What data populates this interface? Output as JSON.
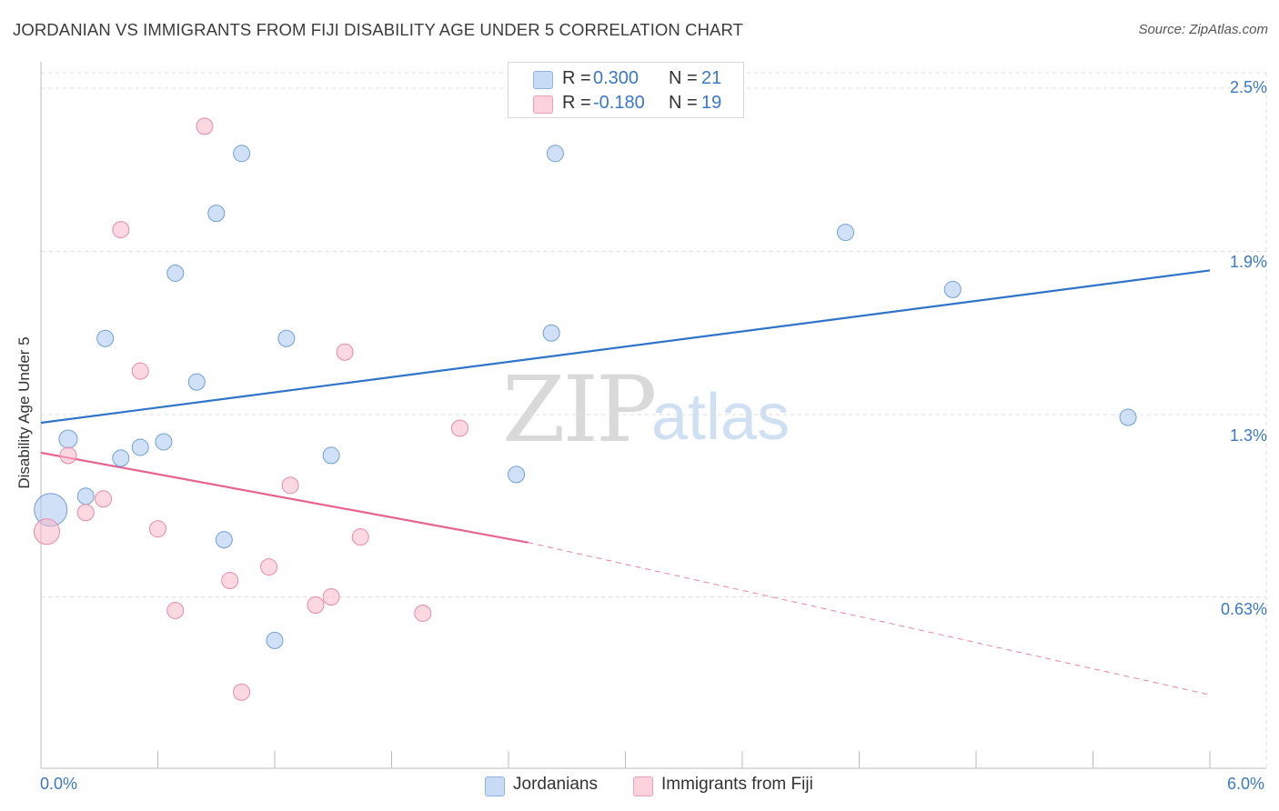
{
  "title": "JORDANIAN VS IMMIGRANTS FROM FIJI DISABILITY AGE UNDER 5 CORRELATION CHART",
  "source": "Source: ZipAtlas.com",
  "watermark": {
    "zip": "ZIP",
    "atlas": "atlas"
  },
  "legend": {
    "rows": [
      {
        "r_label": "R =",
        "r_value": "0.300",
        "n_label": "N =",
        "n_value": "21",
        "color": "#a9c8f0"
      },
      {
        "r_label": "R =",
        "r_value": "-0.180",
        "n_label": "N =",
        "n_value": "19",
        "color": "#f7b8ca"
      }
    ]
  },
  "bottom_legend": {
    "series1": "Jordanians",
    "series2": "Immigrants from Fiji"
  },
  "chart_data": {
    "type": "scatter",
    "title": "JORDANIAN VS IMMIGRANTS FROM FIJI DISABILITY AGE UNDER 5 CORRELATION CHART",
    "xlabel": "",
    "ylabel": "Disability Age Under 5",
    "xlim": [
      0.0,
      6.0
    ],
    "ylim": [
      0.0,
      2.5
    ],
    "x_tick_labels": [
      "0.0%",
      "6.0%"
    ],
    "y_ticks": [
      0.63,
      1.3,
      1.9,
      2.5
    ],
    "y_tick_labels": [
      "0.63%",
      "1.3%",
      "1.9%",
      "2.5%"
    ],
    "grid": true,
    "series": [
      {
        "name": "Jordanians",
        "color": "#a9c8f0",
        "stroke": "#6f9fd8",
        "line_color": "#2f74c8",
        "trend": {
          "x0": 0.0,
          "y0": 1.27,
          "x1": 6.0,
          "y1": 1.83
        },
        "points": [
          {
            "x": 0.05,
            "y": 0.95,
            "size": 18
          },
          {
            "x": 0.14,
            "y": 1.21,
            "size": 10
          },
          {
            "x": 0.23,
            "y": 1.0,
            "size": 9
          },
          {
            "x": 0.33,
            "y": 1.58,
            "size": 9
          },
          {
            "x": 0.41,
            "y": 1.14,
            "size": 9
          },
          {
            "x": 0.51,
            "y": 1.18,
            "size": 9
          },
          {
            "x": 0.63,
            "y": 1.2,
            "size": 9
          },
          {
            "x": 0.69,
            "y": 1.82,
            "size": 9
          },
          {
            "x": 0.8,
            "y": 1.42,
            "size": 9
          },
          {
            "x": 0.9,
            "y": 2.04,
            "size": 9
          },
          {
            "x": 0.94,
            "y": 0.84,
            "size": 9
          },
          {
            "x": 1.03,
            "y": 2.26,
            "size": 9
          },
          {
            "x": 1.2,
            "y": 0.47,
            "size": 9
          },
          {
            "x": 1.26,
            "y": 1.58,
            "size": 9
          },
          {
            "x": 1.49,
            "y": 1.15,
            "size": 9
          },
          {
            "x": 2.44,
            "y": 1.08,
            "size": 9
          },
          {
            "x": 2.62,
            "y": 1.6,
            "size": 9
          },
          {
            "x": 2.64,
            "y": 2.26,
            "size": 9
          },
          {
            "x": 4.13,
            "y": 1.97,
            "size": 9
          },
          {
            "x": 4.68,
            "y": 1.76,
            "size": 9
          },
          {
            "x": 5.58,
            "y": 1.29,
            "size": 9
          }
        ]
      },
      {
        "name": "Immigrants from Fiji",
        "color": "#f7b8ca",
        "stroke": "#e98aa7",
        "line_color": "#e8638f",
        "trend": {
          "x0": 0.0,
          "y0": 1.16,
          "x1": 2.5,
          "y1": 0.83
        },
        "trend_dashed": {
          "x0": 2.5,
          "y0": 0.83,
          "x1": 6.0,
          "y1": 0.27
        },
        "points": [
          {
            "x": 0.03,
            "y": 0.87,
            "size": 14
          },
          {
            "x": 0.14,
            "y": 1.15,
            "size": 9
          },
          {
            "x": 0.23,
            "y": 0.94,
            "size": 9
          },
          {
            "x": 0.32,
            "y": 0.99,
            "size": 9
          },
          {
            "x": 0.41,
            "y": 1.98,
            "size": 9
          },
          {
            "x": 0.51,
            "y": 1.46,
            "size": 9
          },
          {
            "x": 0.6,
            "y": 0.88,
            "size": 9
          },
          {
            "x": 0.69,
            "y": 0.58,
            "size": 9
          },
          {
            "x": 0.84,
            "y": 2.36,
            "size": 9
          },
          {
            "x": 0.97,
            "y": 0.69,
            "size": 9
          },
          {
            "x": 1.03,
            "y": 0.28,
            "size": 9
          },
          {
            "x": 1.17,
            "y": 0.74,
            "size": 9
          },
          {
            "x": 1.28,
            "y": 1.04,
            "size": 9
          },
          {
            "x": 1.41,
            "y": 0.6,
            "size": 9
          },
          {
            "x": 1.49,
            "y": 0.63,
            "size": 9
          },
          {
            "x": 1.56,
            "y": 1.53,
            "size": 9
          },
          {
            "x": 1.64,
            "y": 0.85,
            "size": 9
          },
          {
            "x": 1.96,
            "y": 0.57,
            "size": 9
          },
          {
            "x": 2.15,
            "y": 1.25,
            "size": 9
          }
        ]
      }
    ]
  }
}
